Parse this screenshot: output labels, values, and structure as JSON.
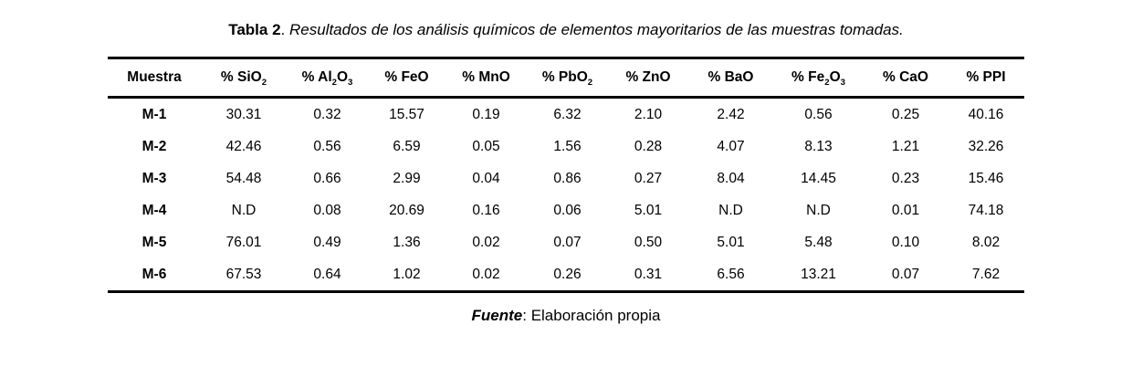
{
  "colors": {
    "background": "#ffffff",
    "text": "#000000",
    "table_border": "#000000"
  },
  "caption": {
    "label": "Tabla 2",
    "separator": ". ",
    "text": "Resultados de los análisis químicos de elementos mayoritarios de las muestras tomadas."
  },
  "table": {
    "columns": [
      {
        "name": "muestra",
        "parts": [
          {
            "text": "Muestra"
          }
        ]
      },
      {
        "name": "sio2",
        "parts": [
          {
            "text": "% SiO"
          },
          {
            "sub": "2"
          }
        ]
      },
      {
        "name": "al2o3",
        "parts": [
          {
            "text": "% Al"
          },
          {
            "sub": "2"
          },
          {
            "text": "O"
          },
          {
            "sub": "3"
          }
        ]
      },
      {
        "name": "feo",
        "parts": [
          {
            "text": "% FeO"
          }
        ]
      },
      {
        "name": "mno",
        "parts": [
          {
            "text": "% MnO"
          }
        ]
      },
      {
        "name": "pbo2",
        "parts": [
          {
            "text": "% PbO"
          },
          {
            "sub": "2"
          }
        ]
      },
      {
        "name": "zno",
        "parts": [
          {
            "text": "% ZnO"
          }
        ]
      },
      {
        "name": "bao",
        "parts": [
          {
            "text": "% BaO"
          }
        ]
      },
      {
        "name": "fe2o3",
        "parts": [
          {
            "text": "% Fe"
          },
          {
            "sub": "2"
          },
          {
            "text": "O"
          },
          {
            "sub": "3"
          }
        ]
      },
      {
        "name": "cao",
        "parts": [
          {
            "text": "% CaO"
          }
        ]
      },
      {
        "name": "ppi",
        "parts": [
          {
            "text": "% PPI"
          }
        ]
      }
    ],
    "rows": [
      {
        "muestra": "M-1",
        "values": [
          "30.31",
          "0.32",
          "15.57",
          "0.19",
          "6.32",
          "2.10",
          "2.42",
          "0.56",
          "0.25",
          "40.16"
        ]
      },
      {
        "muestra": "M-2",
        "values": [
          "42.46",
          "0.56",
          "6.59",
          "0.05",
          "1.56",
          "0.28",
          "4.07",
          "8.13",
          "1.21",
          "32.26"
        ]
      },
      {
        "muestra": "M-3",
        "values": [
          "54.48",
          "0.66",
          "2.99",
          "0.04",
          "0.86",
          "0.27",
          "8.04",
          "14.45",
          "0.23",
          "15.46"
        ]
      },
      {
        "muestra": "M-4",
        "values": [
          "N.D",
          "0.08",
          "20.69",
          "0.16",
          "0.06",
          "5.01",
          "N.D",
          "N.D",
          "0.01",
          "74.18"
        ]
      },
      {
        "muestra": "M-5",
        "values": [
          "76.01",
          "0.49",
          "1.36",
          "0.02",
          "0.07",
          "0.50",
          "5.01",
          "5.48",
          "0.10",
          "8.02"
        ]
      },
      {
        "muestra": "M-6",
        "values": [
          "67.53",
          "0.64",
          "1.02",
          "0.02",
          "0.26",
          "0.31",
          "6.56",
          "13.21",
          "0.07",
          "7.62"
        ]
      }
    ]
  },
  "source": {
    "label": "Fuente",
    "text": ": Elaboración propia"
  }
}
